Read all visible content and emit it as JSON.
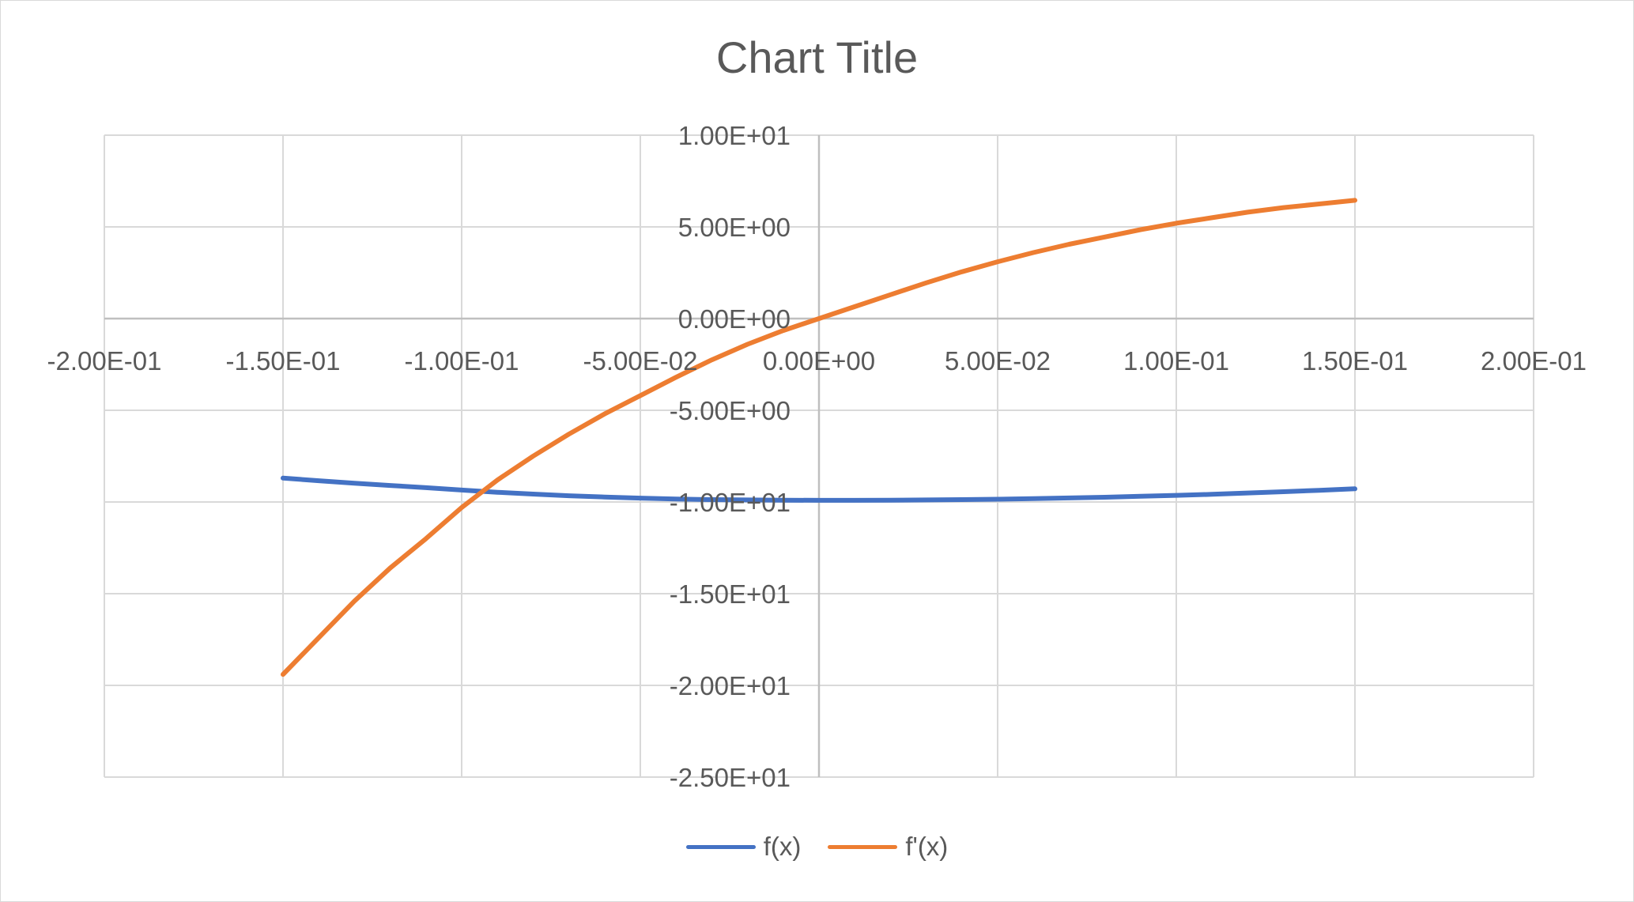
{
  "chart_data": {
    "type": "line",
    "title": "Chart Title",
    "xlim": [
      -0.2,
      0.2
    ],
    "ylim": [
      -25,
      10
    ],
    "x_ticks": [
      -0.2,
      -0.15,
      -0.1,
      -0.05,
      0,
      0.05,
      0.1,
      0.15,
      0.2
    ],
    "y_ticks": [
      10,
      5,
      0,
      -5,
      -10,
      -15,
      -20,
      -25
    ],
    "x_tick_labels": [
      "-2.00E-01",
      "-1.50E-01",
      "-1.00E-01",
      "-5.00E-02",
      "0.00E+00",
      "5.00E-02",
      "1.00E-01",
      "1.50E-01",
      "2.00E-01"
    ],
    "y_tick_labels": [
      "1.00E+01",
      "5.00E+00",
      "0.00E+00",
      "-5.00E+00",
      "-1.00E+01",
      "-1.50E+01",
      "-2.00E+01",
      "-2.50E+01"
    ],
    "grid": true,
    "legend_position": "bottom",
    "x": [
      -0.15,
      -0.14,
      -0.13,
      -0.12,
      -0.11,
      -0.1,
      -0.09,
      -0.08,
      -0.07,
      -0.06,
      -0.05,
      -0.04,
      -0.03,
      -0.02,
      -0.01,
      0,
      0.01,
      0.02,
      0.03,
      0.04,
      0.05,
      0.06,
      0.07,
      0.08,
      0.09,
      0.1,
      0.11,
      0.12,
      0.13,
      0.14,
      0.15
    ],
    "series": [
      {
        "name": "f(x)",
        "color": "#4472c4",
        "values": [
          -8.7,
          -8.84,
          -8.98,
          -9.1,
          -9.22,
          -9.35,
          -9.47,
          -9.57,
          -9.66,
          -9.73,
          -9.79,
          -9.84,
          -9.87,
          -9.89,
          -9.9,
          -9.91,
          -9.91,
          -9.9,
          -9.89,
          -9.87,
          -9.85,
          -9.82,
          -9.78,
          -9.74,
          -9.69,
          -9.64,
          -9.58,
          -9.51,
          -9.44,
          -9.36,
          -9.28
        ]
      },
      {
        "name": "f'(x)",
        "color": "#ed7d31",
        "values": [
          -19.4,
          -17.4,
          -15.4,
          -13.6,
          -12.0,
          -10.3,
          -8.8,
          -7.5,
          -6.3,
          -5.2,
          -4.2,
          -3.2,
          -2.25,
          -1.4,
          -0.65,
          0.0,
          0.65,
          1.3,
          1.95,
          2.55,
          3.1,
          3.6,
          4.05,
          4.45,
          4.85,
          5.2,
          5.5,
          5.8,
          6.05,
          6.25,
          6.45
        ]
      }
    ]
  }
}
